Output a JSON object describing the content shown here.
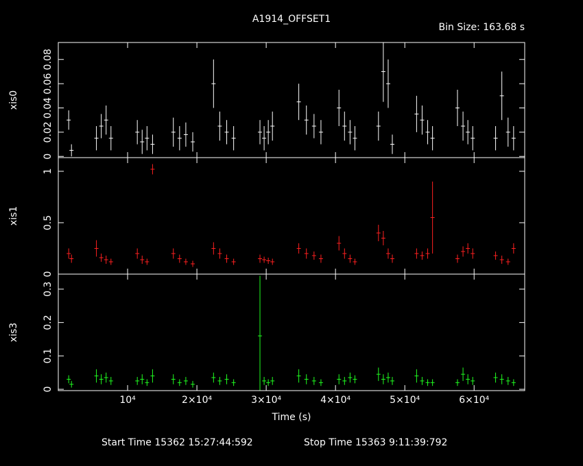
{
  "header": {
    "title": "A1914_OFFSET1",
    "bin_size": "Bin Size: 163.68 s"
  },
  "footer": {
    "start": "Start Time 15362 15:27:44:592",
    "stop": "Stop Time 15363  9:11:39:792"
  },
  "chart_data": [
    {
      "type": "errorbar",
      "ylabel": "xis0",
      "color": "#ffffff",
      "xlim": [
        0,
        67300
      ],
      "ylim": [
        -0.001,
        0.094
      ],
      "yticks": [
        0,
        0.02,
        0.04,
        0.06,
        0.08
      ],
      "x": [
        1500,
        1900,
        5500,
        6200,
        6900,
        7600,
        11400,
        12100,
        12800,
        13600,
        16600,
        17500,
        18400,
        19400,
        22400,
        23300,
        24300,
        25300,
        29100,
        29700,
        30300,
        30900,
        34700,
        35800,
        36900,
        37900,
        40500,
        41300,
        42100,
        42800,
        46200,
        46900,
        47600,
        48200,
        51700,
        52500,
        53300,
        54000,
        57600,
        58400,
        59100,
        59800,
        63100,
        64000,
        64900,
        65700
      ],
      "values": [
        0.03,
        0.005,
        0.015,
        0.025,
        0.03,
        0.015,
        0.02,
        0.012,
        0.015,
        0.01,
        0.02,
        0.015,
        0.018,
        0.012,
        0.06,
        0.025,
        0.02,
        0.015,
        0.02,
        0.015,
        0.02,
        0.025,
        0.045,
        0.03,
        0.025,
        0.02,
        0.04,
        0.025,
        0.02,
        0.015,
        0.025,
        0.07,
        0.06,
        0.01,
        0.035,
        0.03,
        0.02,
        0.015,
        0.04,
        0.025,
        0.02,
        0.015,
        0.015,
        0.05,
        0.02,
        0.015
      ],
      "errors": [
        0.008,
        0.005,
        0.01,
        0.01,
        0.012,
        0.01,
        0.01,
        0.01,
        0.01,
        0.008,
        0.012,
        0.01,
        0.01,
        0.008,
        0.02,
        0.012,
        0.01,
        0.01,
        0.01,
        0.01,
        0.01,
        0.012,
        0.015,
        0.012,
        0.01,
        0.01,
        0.015,
        0.012,
        0.01,
        0.01,
        0.012,
        0.025,
        0.02,
        0.008,
        0.015,
        0.012,
        0.01,
        0.01,
        0.015,
        0.012,
        0.01,
        0.01,
        0.01,
        0.02,
        0.012,
        0.01
      ]
    },
    {
      "type": "errorbar",
      "ylabel": "xis1",
      "color": "#ff2020",
      "xlim": [
        0,
        67300
      ],
      "ylim": [
        0,
        1.133
      ],
      "yticks": [
        0,
        0.5,
        1
      ],
      "x": [
        1500,
        1900,
        5500,
        6200,
        6900,
        7600,
        11400,
        12100,
        12800,
        13600,
        16600,
        17500,
        18400,
        19400,
        22400,
        23300,
        24300,
        25300,
        29100,
        29700,
        30300,
        30900,
        34700,
        35800,
        36900,
        37900,
        40500,
        41300,
        42100,
        42800,
        46200,
        46900,
        47600,
        48200,
        51700,
        52500,
        53300,
        54000,
        57600,
        58400,
        59100,
        59800,
        63100,
        64000,
        64900,
        65700
      ],
      "values": [
        0.2,
        0.15,
        0.25,
        0.16,
        0.14,
        0.12,
        0.2,
        0.14,
        0.12,
        1.02,
        0.2,
        0.15,
        0.12,
        0.1,
        0.25,
        0.2,
        0.15,
        0.12,
        0.15,
        0.14,
        0.13,
        0.12,
        0.25,
        0.2,
        0.18,
        0.15,
        0.3,
        0.2,
        0.15,
        0.12,
        0.4,
        0.35,
        0.2,
        0.15,
        0.2,
        0.18,
        0.2,
        0.55,
        0.15,
        0.22,
        0.25,
        0.2,
        0.18,
        0.14,
        0.12,
        0.25
      ],
      "errors": [
        0.05,
        0.04,
        0.08,
        0.04,
        0.04,
        0.03,
        0.05,
        0.04,
        0.03,
        0.05,
        0.05,
        0.04,
        0.03,
        0.03,
        0.06,
        0.05,
        0.04,
        0.03,
        0.04,
        0.03,
        0.03,
        0.03,
        0.05,
        0.05,
        0.04,
        0.04,
        0.07,
        0.05,
        0.04,
        0.03,
        0.08,
        0.07,
        0.05,
        0.04,
        0.05,
        0.04,
        0.05,
        0.35,
        0.04,
        0.05,
        0.05,
        0.05,
        0.04,
        0.04,
        0.03,
        0.05
      ]
    },
    {
      "type": "errorbar",
      "ylabel": "xis3",
      "color": "#20ff20",
      "xlabel": "Time (s)",
      "xlim": [
        0,
        67300
      ],
      "ylim": [
        -0.004,
        0.345
      ],
      "yticks": [
        0,
        0.1,
        0.2,
        0.3
      ],
      "xticks": [
        {
          "value": 10000,
          "label": "10⁴"
        },
        {
          "value": 20000,
          "label": "2×10⁴"
        },
        {
          "value": 30000,
          "label": "3×10⁴"
        },
        {
          "value": 40000,
          "label": "4×10⁴"
        },
        {
          "value": 50000,
          "label": "5×10⁴"
        },
        {
          "value": 60000,
          "label": "6×10⁴"
        }
      ],
      "x": [
        1500,
        1900,
        5500,
        6200,
        6900,
        7600,
        11400,
        12100,
        12800,
        13600,
        16600,
        17500,
        18400,
        19400,
        22400,
        23300,
        24300,
        25300,
        29100,
        29700,
        30300,
        30900,
        34700,
        35800,
        36900,
        37900,
        40500,
        41300,
        42100,
        42800,
        46200,
        46900,
        47600,
        48200,
        51700,
        52500,
        53300,
        54000,
        57600,
        58400,
        59100,
        59800,
        63100,
        64000,
        64900,
        65700
      ],
      "values": [
        0.03,
        0.015,
        0.04,
        0.03,
        0.035,
        0.025,
        0.025,
        0.03,
        0.02,
        0.04,
        0.03,
        0.02,
        0.025,
        0.015,
        0.035,
        0.025,
        0.03,
        0.02,
        0.16,
        0.025,
        0.02,
        0.025,
        0.04,
        0.03,
        0.025,
        0.02,
        0.03,
        0.025,
        0.035,
        0.03,
        0.045,
        0.03,
        0.035,
        0.025,
        0.04,
        0.025,
        0.02,
        0.02,
        0.02,
        0.045,
        0.03,
        0.025,
        0.035,
        0.03,
        0.025,
        0.02
      ],
      "errors": [
        0.012,
        0.01,
        0.02,
        0.015,
        0.015,
        0.012,
        0.012,
        0.015,
        0.01,
        0.02,
        0.015,
        0.01,
        0.012,
        0.01,
        0.015,
        0.012,
        0.015,
        0.01,
        0.18,
        0.012,
        0.01,
        0.012,
        0.02,
        0.015,
        0.012,
        0.01,
        0.015,
        0.012,
        0.015,
        0.012,
        0.02,
        0.015,
        0.015,
        0.012,
        0.02,
        0.012,
        0.01,
        0.01,
        0.01,
        0.02,
        0.015,
        0.012,
        0.015,
        0.015,
        0.012,
        0.01
      ]
    }
  ]
}
